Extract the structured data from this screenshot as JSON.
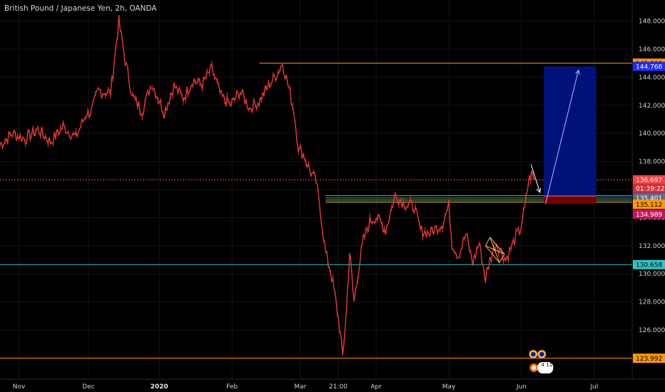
{
  "chart_data": {
    "type": "candlestick",
    "title": "British Pound / Japanese Yen, 2h, OANDA",
    "ylim": [
      122.5,
      149.5
    ],
    "y_ticks": [
      "148.000",
      "146.000",
      "144.000",
      "142.000",
      "140.000",
      "138.000",
      "136.000",
      "134.000",
      "132.000",
      "130.000",
      "128.000",
      "126.000"
    ],
    "x_ticks": [
      {
        "label": "Nov",
        "t": 0.03
      },
      {
        "label": "Dec",
        "t": 0.14
      },
      {
        "label": "2020",
        "t": 0.252,
        "bold": true
      },
      {
        "label": "Feb",
        "t": 0.367
      },
      {
        "label": "Mar",
        "t": 0.475
      },
      {
        "label": "21:00",
        "t": 0.535
      },
      {
        "label": "Apr",
        "t": 0.595
      },
      {
        "label": "May",
        "t": 0.71
      },
      {
        "label": "Jun",
        "t": 0.825
      },
      {
        "label": "Jul",
        "t": 0.94
      }
    ],
    "price_series": [
      [
        0.0,
        139.2
      ],
      [
        0.02,
        140.0
      ],
      [
        0.04,
        139.6
      ],
      [
        0.06,
        140.3
      ],
      [
        0.08,
        139.4
      ],
      [
        0.1,
        140.5
      ],
      [
        0.12,
        139.7
      ],
      [
        0.135,
        141.3
      ],
      [
        0.145,
        141.6
      ],
      [
        0.155,
        143.0
      ],
      [
        0.175,
        142.9
      ],
      [
        0.188,
        148.0
      ],
      [
        0.198,
        145.2
      ],
      [
        0.21,
        142.6
      ],
      [
        0.225,
        141.6
      ],
      [
        0.24,
        143.6
      ],
      [
        0.26,
        141.5
      ],
      [
        0.275,
        143.4
      ],
      [
        0.29,
        142.5
      ],
      [
        0.305,
        143.8
      ],
      [
        0.32,
        143.5
      ],
      [
        0.335,
        144.6
      ],
      [
        0.35,
        142.6
      ],
      [
        0.365,
        142.0
      ],
      [
        0.38,
        143.0
      ],
      [
        0.395,
        141.8
      ],
      [
        0.41,
        142.3
      ],
      [
        0.425,
        143.4
      ],
      [
        0.44,
        144.4
      ],
      [
        0.447,
        145.0
      ],
      [
        0.455,
        143.6
      ],
      [
        0.465,
        141.6
      ],
      [
        0.472,
        139.0
      ],
      [
        0.48,
        138.5
      ],
      [
        0.49,
        137.4
      ],
      [
        0.5,
        136.6
      ],
      [
        0.508,
        134.1
      ],
      [
        0.515,
        131.5
      ],
      [
        0.523,
        130.2
      ],
      [
        0.53,
        128.4
      ],
      [
        0.537,
        126.3
      ],
      [
        0.542,
        124.1
      ],
      [
        0.548,
        127.4
      ],
      [
        0.553,
        131.6
      ],
      [
        0.56,
        128.0
      ],
      [
        0.568,
        130.6
      ],
      [
        0.575,
        132.4
      ],
      [
        0.585,
        133.7
      ],
      [
        0.595,
        134.1
      ],
      [
        0.61,
        133.1
      ],
      [
        0.625,
        135.6
      ],
      [
        0.64,
        135.0
      ],
      [
        0.655,
        134.8
      ],
      [
        0.665,
        133.1
      ],
      [
        0.68,
        132.9
      ],
      [
        0.7,
        133.6
      ],
      [
        0.71,
        134.9
      ],
      [
        0.715,
        132.2
      ],
      [
        0.725,
        131.3
      ],
      [
        0.737,
        132.8
      ],
      [
        0.748,
        130.8
      ],
      [
        0.758,
        132.2
      ],
      [
        0.768,
        129.6
      ],
      [
        0.775,
        131.0
      ],
      [
        0.785,
        132.2
      ],
      [
        0.8,
        131.0
      ],
      [
        0.81,
        132.0
      ],
      [
        0.818,
        132.8
      ],
      [
        0.822,
        133.0
      ],
      [
        0.83,
        134.6
      ],
      [
        0.836,
        136.6
      ],
      [
        0.841,
        137.1
      ],
      [
        0.845,
        136.7
      ]
    ],
    "horizontal_lines": [
      {
        "name": "line-145",
        "price": 145.0,
        "color": "#ff9800",
        "label": "145.000",
        "start_t": 0.41
      },
      {
        "name": "line-136697",
        "price": 136.697,
        "color": "#ff4040",
        "label": "136.697",
        "dashed": true
      },
      {
        "name": "line-135546",
        "price": 135.546,
        "color": "#1e3cff",
        "label": "135.546",
        "start_t": 0.86
      },
      {
        "name": "line-130658",
        "price": 130.658,
        "color": "#2ec4c8",
        "label": "130.658"
      },
      {
        "name": "line-123992",
        "price": 123.992,
        "color": "#ff9800",
        "label": "123.992"
      }
    ],
    "zone_lines": [
      {
        "price": 135.56,
        "color": "#2ec4c8"
      },
      {
        "price": 135.4,
        "color": "#4caf50"
      },
      {
        "price": 135.25,
        "color": "#8bc34a"
      },
      {
        "price": 135.11,
        "color": "#ffb74d"
      }
    ],
    "price_tags": [
      {
        "label": "144.768",
        "price": 144.768,
        "bg": "#1e28ff",
        "fg": "#ffffff"
      },
      {
        "label": "01:39:22",
        "price": 136.1,
        "bg": "#d32f2f",
        "fg": "#ffffff"
      },
      {
        "label": "135.401",
        "price": 135.4,
        "bg": "#607080",
        "fg": "#ffffff"
      },
      {
        "label": "135.112",
        "price": 134.95,
        "bg": "#ff9800",
        "fg": "#000000"
      },
      {
        "label": "134.989",
        "price": 134.25,
        "bg": "#c2185b",
        "fg": "#ffffff"
      }
    ],
    "position_tool": {
      "entry": 135.546,
      "target": 144.768,
      "stop": 134.989,
      "t_start": 0.86,
      "t_end": 0.943
    },
    "badges": {
      "count_a": "4",
      "count_b": "11"
    },
    "colors": {
      "background": "#000000",
      "candles": "#e53935",
      "grid": "#141414",
      "profit_zone": "#00127a",
      "loss_zone": "#7a0000",
      "axis_text": "#d0d0d0",
      "arrow": "#b0bcff",
      "pattern": "#ffb74d"
    }
  }
}
